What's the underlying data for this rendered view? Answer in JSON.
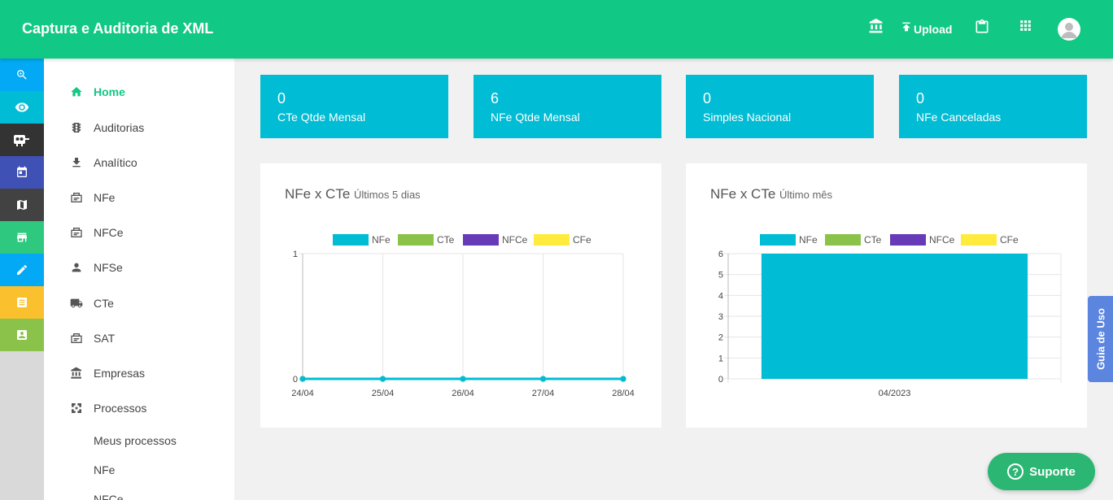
{
  "header": {
    "title": "Captura e Auditoria de XML",
    "upload_label": "Upload",
    "icons": [
      "bank-icon",
      "upload-icon",
      "clipboard-icon",
      "apps-grid-icon",
      "avatar"
    ]
  },
  "rail": [
    {
      "icon": "zoom-icon",
      "color": "#03a9f4"
    },
    {
      "icon": "eye-icon",
      "color": "#00bcd4"
    },
    {
      "icon": "robot-icon",
      "color": "#333333"
    },
    {
      "icon": "calendar-icon",
      "color": "#3f51b5"
    },
    {
      "icon": "map-icon",
      "color": "#424242"
    },
    {
      "icon": "store-icon",
      "color": "#2ec97f"
    },
    {
      "icon": "pencil-icon",
      "color": "#03a9f4"
    },
    {
      "icon": "receipt-icon",
      "color": "#fbc02d"
    },
    {
      "icon": "contact-icon",
      "color": "#8bc34a"
    }
  ],
  "sidebar": {
    "items": [
      {
        "label": "Home",
        "icon": "home-icon"
      },
      {
        "label": "Auditorias",
        "icon": "traffic-icon"
      },
      {
        "label": "Analítico",
        "icon": "download-icon"
      },
      {
        "label": "NFe",
        "icon": "receipt-box-icon"
      },
      {
        "label": "NFCe",
        "icon": "receipt-box-icon"
      },
      {
        "label": "NFSe",
        "icon": "person-icon"
      },
      {
        "label": "CTe",
        "icon": "truck-icon"
      },
      {
        "label": "SAT",
        "icon": "receipt-box-icon"
      },
      {
        "label": "Empresas",
        "icon": "bank-icon"
      },
      {
        "label": "Processos",
        "icon": "process-icon"
      }
    ],
    "subitems": [
      "Meus processos",
      "NFe",
      "NFCe"
    ]
  },
  "stats": [
    {
      "value": "0",
      "label": "CTe Qtde Mensal"
    },
    {
      "value": "6",
      "label": "NFe Qtde Mensal"
    },
    {
      "value": "0",
      "label": "Simples Nacional"
    },
    {
      "value": "0",
      "label": "NFe Canceladas"
    }
  ],
  "legend": [
    {
      "name": "NFe",
      "color": "#00bcd4"
    },
    {
      "name": "CTe",
      "color": "#8bc34a"
    },
    {
      "name": "NFCe",
      "color": "#673ab7"
    },
    {
      "name": "CFe",
      "color": "#ffeb3b"
    }
  ],
  "chart_data": [
    {
      "type": "line",
      "title": "NFe x CTe",
      "subtitle": "Últimos 5 dias",
      "x": [
        "24/04",
        "25/04",
        "26/04",
        "27/04",
        "28/04"
      ],
      "series": [
        {
          "name": "NFe",
          "values": [
            0,
            0,
            0,
            0,
            0
          ]
        },
        {
          "name": "CTe",
          "values": [
            0,
            0,
            0,
            0,
            0
          ]
        },
        {
          "name": "NFCe",
          "values": [
            0,
            0,
            0,
            0,
            0
          ]
        },
        {
          "name": "CFe",
          "values": [
            0,
            0,
            0,
            0,
            0
          ]
        }
      ],
      "ylim": [
        0,
        1
      ],
      "yticks": [
        "0",
        "1"
      ],
      "grid": true,
      "legend": "top"
    },
    {
      "type": "bar",
      "title": "NFe x CTe",
      "subtitle": "Último mês",
      "categories": [
        "04/2023"
      ],
      "series": [
        {
          "name": "NFe",
          "values": [
            6
          ]
        },
        {
          "name": "CTe",
          "values": [
            0
          ]
        },
        {
          "name": "NFCe",
          "values": [
            0
          ]
        },
        {
          "name": "CFe",
          "values": [
            0
          ]
        }
      ],
      "ylim": [
        0,
        6
      ],
      "yticks": [
        "0",
        "1",
        "2",
        "3",
        "4",
        "5",
        "6"
      ],
      "grid": true,
      "legend": "top"
    }
  ],
  "floating": {
    "guia_label": "Guia de Uso",
    "suporte_label": "Suporte",
    "suporte_glyph": "?"
  }
}
